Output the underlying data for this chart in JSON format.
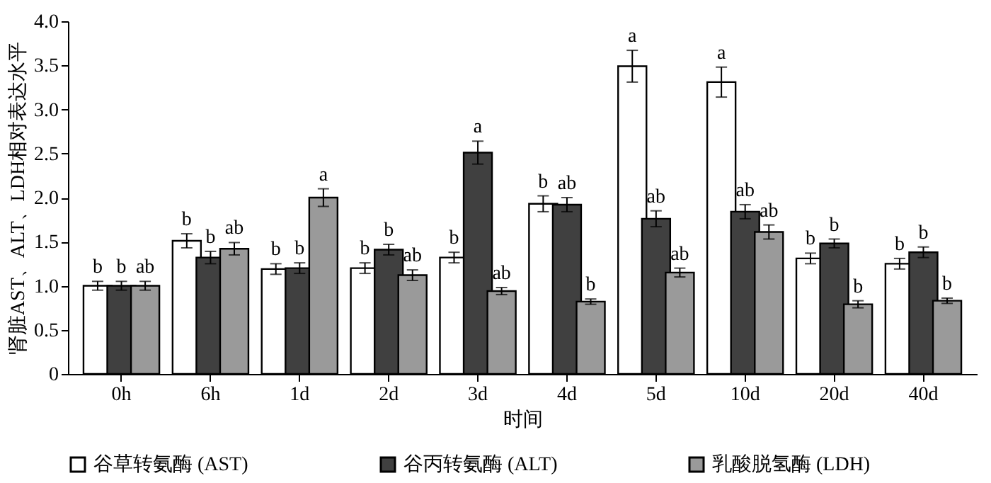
{
  "chart_data": {
    "type": "bar",
    "xlabel": "时间",
    "ylabel": "肾脏AST、ALT、LDH相对表达水平",
    "categories": [
      "0h",
      "6h",
      "1d",
      "2d",
      "3d",
      "4d",
      "5d",
      "10d",
      "20d",
      "40d"
    ],
    "series": [
      {
        "name": "谷草转氨酶 (AST)",
        "color": "#ffffff",
        "values": [
          1.0,
          1.51,
          1.19,
          1.2,
          1.32,
          1.93,
          3.49,
          3.31,
          1.31,
          1.25
        ],
        "errors": [
          0.05,
          0.08,
          0.06,
          0.06,
          0.06,
          0.09,
          0.18,
          0.17,
          0.06,
          0.06
        ],
        "value_labels": [
          "b",
          "b",
          "b",
          "b",
          "b",
          "b",
          "a",
          "a",
          "b",
          "b"
        ]
      },
      {
        "name": "谷丙转氨酶 (ALT)",
        "color": "#404040",
        "values": [
          1.0,
          1.32,
          1.2,
          1.41,
          2.51,
          1.92,
          1.76,
          1.84,
          1.48,
          1.38
        ],
        "errors": [
          0.05,
          0.07,
          0.06,
          0.06,
          0.13,
          0.08,
          0.09,
          0.08,
          0.05,
          0.06
        ],
        "value_labels": [
          "b",
          "b",
          "b",
          "b",
          "a",
          "ab",
          "ab",
          "ab",
          "b",
          "b"
        ]
      },
      {
        "name": "乳酸脱氢酶 (LDH)",
        "color": "#9a9a9a",
        "values": [
          1.0,
          1.42,
          2.0,
          1.12,
          0.94,
          0.82,
          1.15,
          1.61,
          0.79,
          0.83
        ],
        "errors": [
          0.05,
          0.07,
          0.1,
          0.06,
          0.04,
          0.03,
          0.05,
          0.08,
          0.04,
          0.03
        ],
        "value_labels": [
          "ab",
          "ab",
          "a",
          "ab",
          "ab",
          "b",
          "ab",
          "ab",
          "b",
          "b"
        ]
      }
    ],
    "ylim": [
      0,
      4.0
    ],
    "yticks": [
      0,
      {
        "value": 0.5,
        "label": "0.5"
      },
      {
        "value": 1,
        "label": "1.0"
      },
      {
        "value": 1.5,
        "label": "1.5"
      },
      {
        "value": 2,
        "label": "2.0"
      },
      {
        "value": 2.5,
        "label": "2.5"
      },
      {
        "value": 3,
        "label": "3.0"
      },
      {
        "value": 3.5,
        "label": "3.5"
      },
      {
        "value": 4,
        "label": "4.0"
      }
    ],
    "grid": false,
    "legend": "bottom"
  }
}
